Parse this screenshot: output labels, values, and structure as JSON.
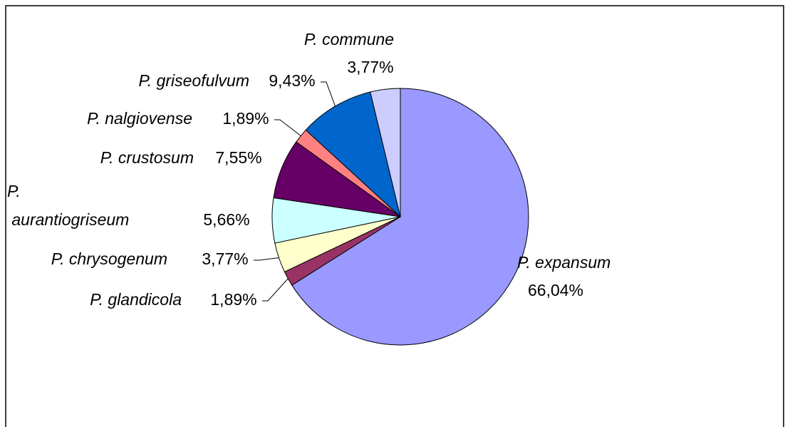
{
  "chart_data": {
    "type": "pie",
    "categories": [
      "P. expansum",
      "P. glandicola",
      "P. chrysogenum",
      "P. aurantiogriseum",
      "P. crustosum",
      "P. nalgiovense",
      "P. griseofulvum",
      "P. commune"
    ],
    "values": [
      66.04,
      1.89,
      3.77,
      5.66,
      7.55,
      1.89,
      9.43,
      3.77
    ],
    "value_labels": [
      "66,04%",
      "1,89%",
      "3,77%",
      "5,66%",
      "7,55%",
      "1,89%",
      "9,43%",
      "3,77%"
    ],
    "colors": [
      "#9999ff",
      "#993366",
      "#ffffcc",
      "#ccffff",
      "#660066",
      "#ff8080",
      "#0066cc",
      "#ccccff"
    ]
  }
}
